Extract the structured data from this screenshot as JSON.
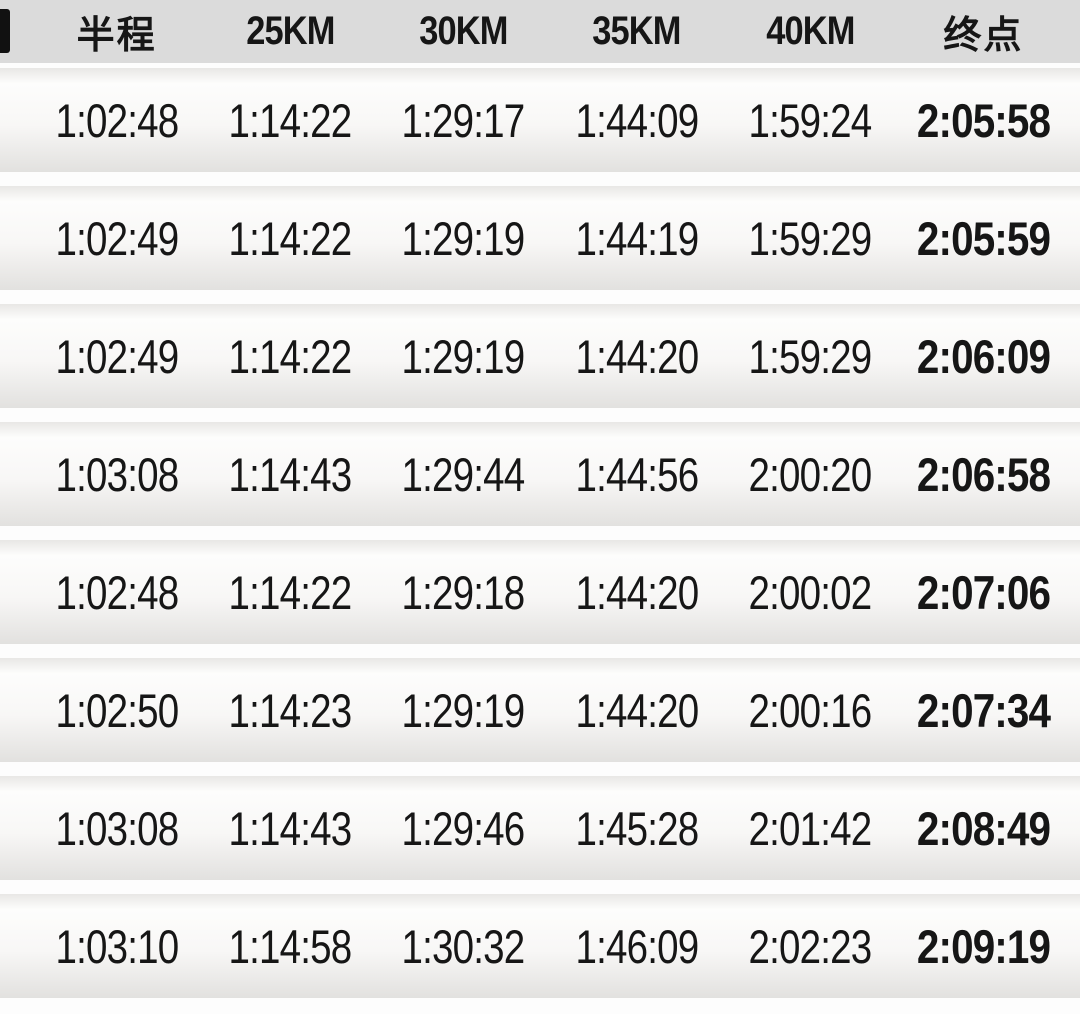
{
  "header": {
    "cells": [
      "半程",
      "25KM",
      "30KM",
      "35KM",
      "40KM",
      "终点"
    ]
  },
  "rows": [
    [
      "1:02:48",
      "1:14:22",
      "1:29:17",
      "1:44:09",
      "1:59:24",
      "2:05:58"
    ],
    [
      "1:02:49",
      "1:14:22",
      "1:29:19",
      "1:44:19",
      "1:59:29",
      "2:05:59"
    ],
    [
      "1:02:49",
      "1:14:22",
      "1:29:19",
      "1:44:20",
      "1:59:29",
      "2:06:09"
    ],
    [
      "1:03:08",
      "1:14:43",
      "1:29:44",
      "1:44:56",
      "2:00:20",
      "2:06:58"
    ],
    [
      "1:02:48",
      "1:14:22",
      "1:29:18",
      "1:44:20",
      "2:00:02",
      "2:07:06"
    ],
    [
      "1:02:50",
      "1:14:23",
      "1:29:19",
      "1:44:20",
      "2:00:16",
      "2:07:34"
    ],
    [
      "1:03:08",
      "1:14:43",
      "1:29:46",
      "1:45:28",
      "2:01:42",
      "2:08:49"
    ],
    [
      "1:03:10",
      "1:14:58",
      "1:30:32",
      "1:46:09",
      "2:02:23",
      "2:09:19"
    ]
  ],
  "colors": {
    "header_bg": "#dbdbdb",
    "row_gradient_top": "#e8e7e5",
    "row_gradient_bottom": "#e2e1df",
    "text": "#161616"
  }
}
